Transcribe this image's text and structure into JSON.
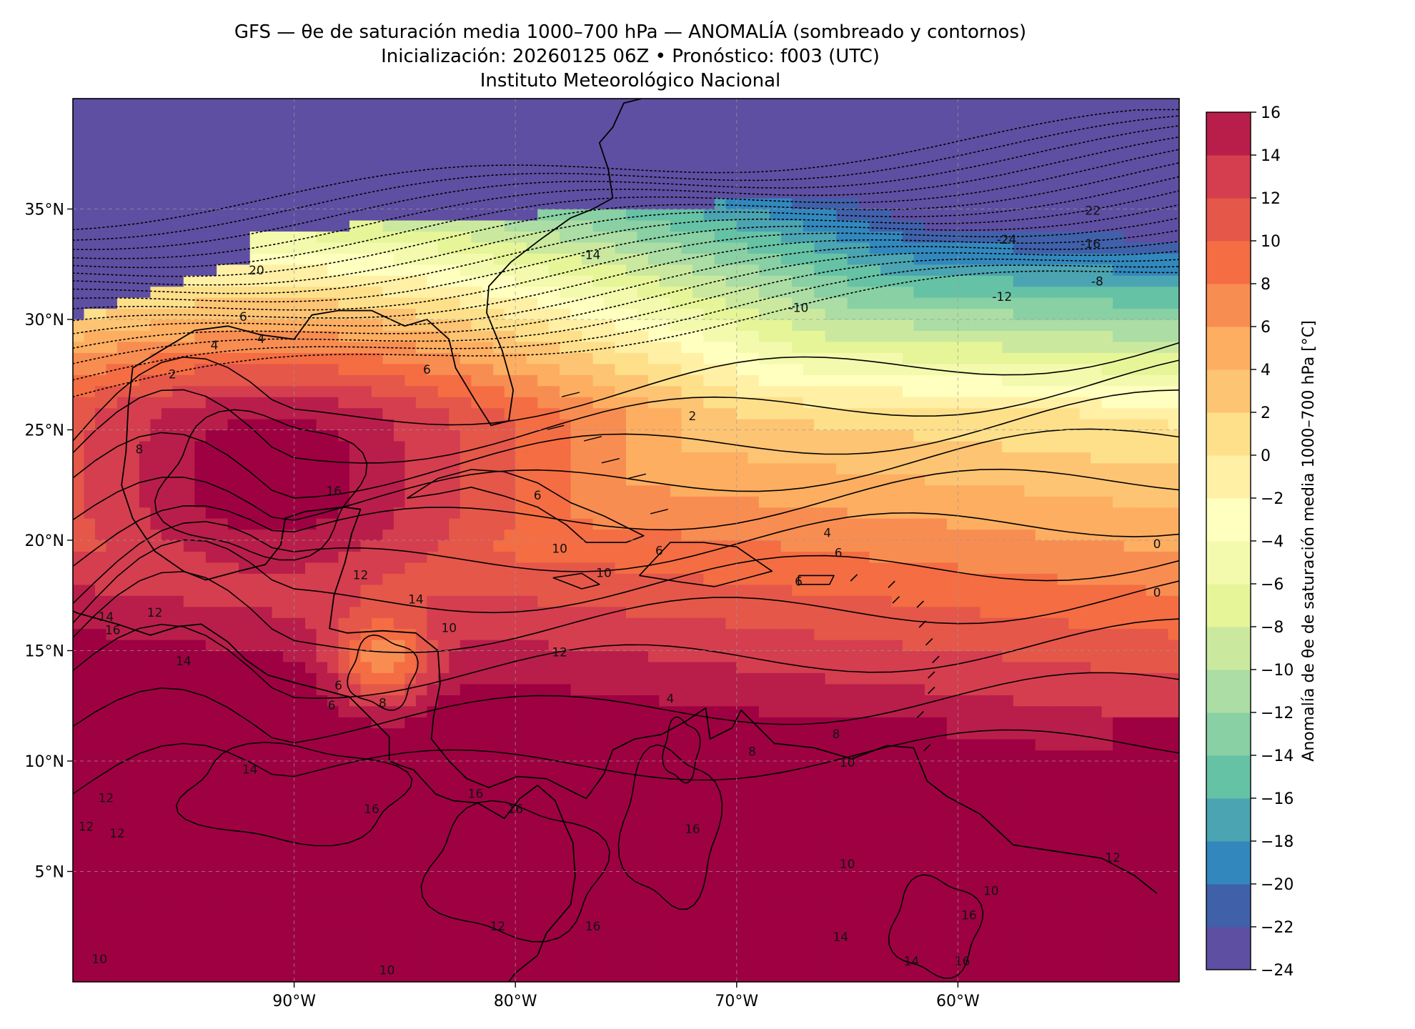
{
  "header": {
    "title_line1": "GFS — θe de saturación media 1000–700 hPa — ANOMALÍA (sombreado y contornos)",
    "title_line2": "Inicialización: 20260125 06Z   •   Pronóstico: f003 (UTC)",
    "title_line3": "Instituto Meteorológico Nacional"
  },
  "chart_data": {
    "type": "heatmap",
    "title": "GFS — θe de saturación media 1000–700 hPa — ANOMALÍA (sombreado y contornos)",
    "x_axis": {
      "range": [
        -100,
        -50
      ],
      "ticks": [
        -90,
        -80,
        -70,
        -60
      ],
      "tick_labels": [
        "90°W",
        "80°W",
        "70°W",
        "60°W"
      ]
    },
    "y_axis": {
      "range": [
        0,
        40
      ],
      "ticks": [
        5,
        10,
        15,
        20,
        25,
        30,
        35
      ],
      "tick_labels": [
        "5°N",
        "10°N",
        "15°N",
        "20°N",
        "25°N",
        "30°N",
        "35°N"
      ]
    },
    "grid": true,
    "colorbar": {
      "label": "Anomalía de θe de saturación media 1000–700 hPa [°C]",
      "levels": [
        -24,
        -22,
        -20,
        -18,
        -16,
        -14,
        -12,
        -10,
        -8,
        -6,
        -4,
        -2,
        0,
        2,
        4,
        6,
        8,
        10,
        12,
        14,
        16
      ],
      "tick_labels": [
        "−24",
        "−22",
        "−20",
        "−18",
        "−16",
        "−14",
        "−12",
        "−10",
        "−8",
        "−6",
        "−4",
        "−2",
        "0",
        "2",
        "4",
        "6",
        "8",
        "10",
        "12",
        "14",
        "16"
      ],
      "colors": [
        "#5e4fa2",
        "#4061aa",
        "#3288bd",
        "#4ba4b1",
        "#66c2a5",
        "#89d0a4",
        "#abdda4",
        "#cbe99e",
        "#e6f598",
        "#f3faad",
        "#ffffbf",
        "#fff0a6",
        "#fee08b",
        "#fdc473",
        "#fdae61",
        "#f88d52",
        "#f46d43",
        "#e55749",
        "#d53e4f",
        "#b91e4a",
        "#9e0142"
      ],
      "position": "right"
    },
    "contour_labels": [
      {
        "lon": -91.7,
        "lat": 32.2,
        "text": "20"
      },
      {
        "lon": -92.3,
        "lat": 30.1,
        "text": "6"
      },
      {
        "lon": -93.6,
        "lat": 28.8,
        "text": "4"
      },
      {
        "lon": -91.5,
        "lat": 29.1,
        "text": "4"
      },
      {
        "lon": -95.5,
        "lat": 27.5,
        "text": "2"
      },
      {
        "lon": -97.0,
        "lat": 24.1,
        "text": "8"
      },
      {
        "lon": -84.0,
        "lat": 27.7,
        "text": "6"
      },
      {
        "lon": -76.6,
        "lat": 32.9,
        "text": "-14"
      },
      {
        "lon": -57.8,
        "lat": 33.6,
        "text": "-24"
      },
      {
        "lon": -54.0,
        "lat": 34.9,
        "text": "-22"
      },
      {
        "lon": -54.0,
        "lat": 33.4,
        "text": "-16"
      },
      {
        "lon": -58.0,
        "lat": 31.0,
        "text": "-12"
      },
      {
        "lon": -53.7,
        "lat": 31.7,
        "text": "-8"
      },
      {
        "lon": -67.2,
        "lat": 30.5,
        "text": "-10"
      },
      {
        "lon": -72.0,
        "lat": 25.6,
        "text": "2"
      },
      {
        "lon": -88.2,
        "lat": 22.2,
        "text": "16"
      },
      {
        "lon": -79.0,
        "lat": 22.0,
        "text": "6"
      },
      {
        "lon": -78.0,
        "lat": 19.6,
        "text": "10"
      },
      {
        "lon": -76.0,
        "lat": 18.5,
        "text": "10"
      },
      {
        "lon": -73.5,
        "lat": 19.5,
        "text": "6"
      },
      {
        "lon": -65.4,
        "lat": 19.4,
        "text": "6"
      },
      {
        "lon": -67.2,
        "lat": 18.1,
        "text": "6"
      },
      {
        "lon": -87.0,
        "lat": 18.4,
        "text": "12"
      },
      {
        "lon": -84.5,
        "lat": 17.3,
        "text": "14"
      },
      {
        "lon": -83.0,
        "lat": 16.0,
        "text": "10"
      },
      {
        "lon": -96.3,
        "lat": 16.7,
        "text": "12"
      },
      {
        "lon": -98.5,
        "lat": 16.5,
        "text": "14"
      },
      {
        "lon": -98.2,
        "lat": 15.9,
        "text": "16"
      },
      {
        "lon": -95.0,
        "lat": 14.5,
        "text": "14"
      },
      {
        "lon": -88.0,
        "lat": 13.4,
        "text": "6"
      },
      {
        "lon": -88.3,
        "lat": 12.5,
        "text": "6"
      },
      {
        "lon": -86.0,
        "lat": 12.6,
        "text": "8"
      },
      {
        "lon": -78.0,
        "lat": 14.9,
        "text": "12"
      },
      {
        "lon": -73.0,
        "lat": 12.8,
        "text": "4"
      },
      {
        "lon": -69.3,
        "lat": 10.4,
        "text": "8"
      },
      {
        "lon": -65.5,
        "lat": 11.2,
        "text": "8"
      },
      {
        "lon": -65.0,
        "lat": 9.9,
        "text": "10"
      },
      {
        "lon": -92.0,
        "lat": 9.6,
        "text": "14"
      },
      {
        "lon": -98.5,
        "lat": 8.3,
        "text": "12"
      },
      {
        "lon": -99.4,
        "lat": 7.0,
        "text": "12"
      },
      {
        "lon": -98.0,
        "lat": 6.7,
        "text": "12"
      },
      {
        "lon": -86.5,
        "lat": 7.8,
        "text": "16"
      },
      {
        "lon": -81.8,
        "lat": 8.5,
        "text": "16"
      },
      {
        "lon": -80.0,
        "lat": 7.8,
        "text": "16"
      },
      {
        "lon": -72.0,
        "lat": 6.9,
        "text": "16"
      },
      {
        "lon": -65.0,
        "lat": 5.3,
        "text": "10"
      },
      {
        "lon": -58.5,
        "lat": 4.1,
        "text": "10"
      },
      {
        "lon": -53.0,
        "lat": 5.6,
        "text": "12"
      },
      {
        "lon": -59.5,
        "lat": 3.0,
        "text": "16"
      },
      {
        "lon": -80.8,
        "lat": 2.5,
        "text": "12"
      },
      {
        "lon": -76.5,
        "lat": 2.5,
        "text": "16"
      },
      {
        "lon": -65.3,
        "lat": 2.0,
        "text": "14"
      },
      {
        "lon": -62.1,
        "lat": 0.9,
        "text": "14"
      },
      {
        "lon": -59.8,
        "lat": 0.9,
        "text": "16"
      },
      {
        "lon": -98.8,
        "lat": 1.0,
        "text": "10"
      },
      {
        "lon": -85.8,
        "lat": 0.5,
        "text": "10"
      },
      {
        "lon": -51.0,
        "lat": 19.8,
        "text": "0"
      },
      {
        "lon": -51.0,
        "lat": 17.6,
        "text": "0"
      },
      {
        "lon": -65.9,
        "lat": 20.3,
        "text": "4"
      }
    ]
  }
}
